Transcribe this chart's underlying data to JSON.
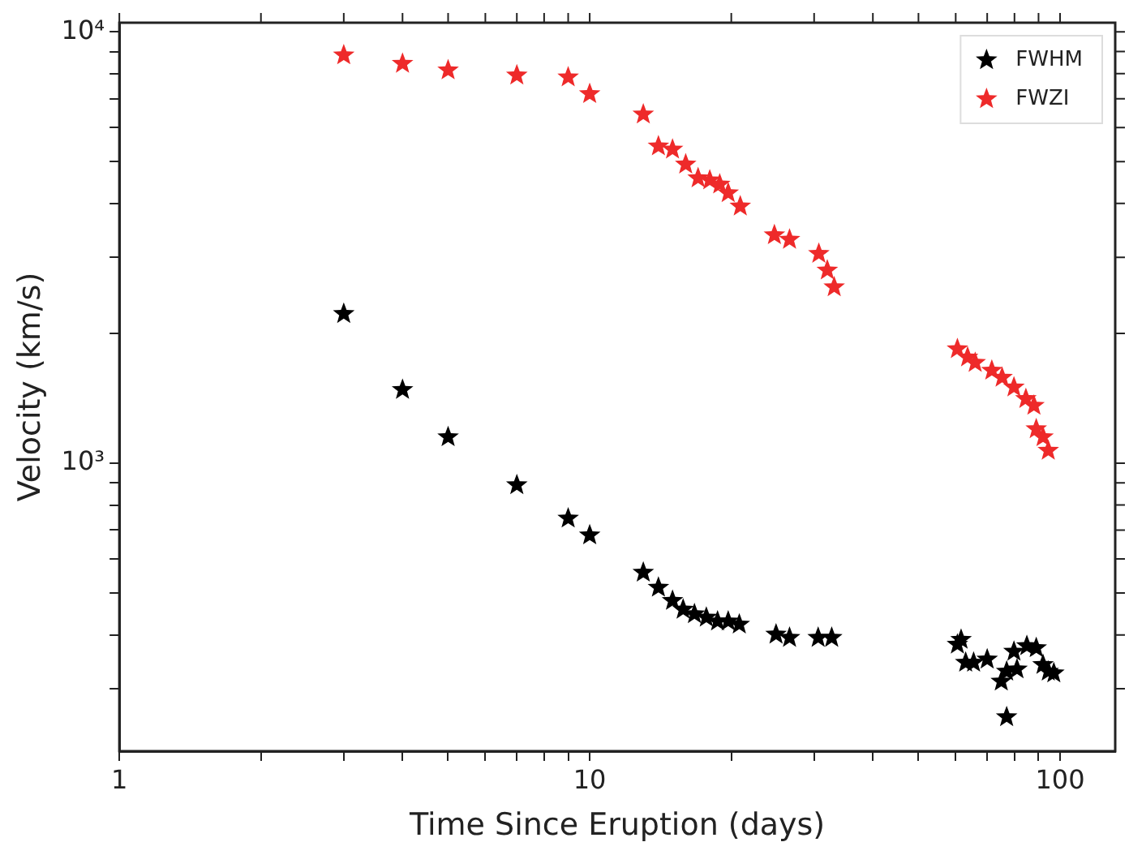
{
  "chart_data": {
    "type": "scatter",
    "xlabel": "Time Since Eruption (days)",
    "ylabel": "Velocity (km/s)",
    "log": "xy",
    "marker": "star",
    "legend": "top right",
    "grid": false,
    "xlim": [
      1,
      131
    ],
    "ylim": [
      215,
      10500
    ],
    "xticks": [
      1,
      {
        "value": 2,
        "label": null
      },
      {
        "value": 3,
        "label": null
      },
      {
        "value": 4,
        "label": null
      },
      {
        "value": 5,
        "label": null
      },
      {
        "value": 6,
        "label": null
      },
      {
        "value": 7,
        "label": null
      },
      {
        "value": 8,
        "label": null
      },
      {
        "value": 9,
        "label": null
      },
      10,
      {
        "value": 20,
        "label": null
      },
      {
        "value": 30,
        "label": null
      },
      {
        "value": 40,
        "label": null
      },
      {
        "value": 50,
        "label": null
      },
      {
        "value": 60,
        "label": null
      },
      {
        "value": 70,
        "label": null
      },
      {
        "value": 80,
        "label": null
      },
      {
        "value": 90,
        "label": null
      },
      100
    ],
    "yticks": [
      {
        "value": 300,
        "label": null
      },
      {
        "value": 400,
        "label": null
      },
      {
        "value": 500,
        "label": null
      },
      {
        "value": 600,
        "label": null
      },
      {
        "value": 700,
        "label": null
      },
      {
        "value": 800,
        "label": null
      },
      {
        "value": 900,
        "label": null
      },
      {
        "value": 1000,
        "label": "10³"
      },
      {
        "value": 2000,
        "label": null
      },
      {
        "value": 3000,
        "label": null
      },
      {
        "value": 4000,
        "label": null
      },
      {
        "value": 5000,
        "label": null
      },
      {
        "value": 6000,
        "label": null
      },
      {
        "value": 7000,
        "label": null
      },
      {
        "value": 8000,
        "label": null
      },
      {
        "value": 9000,
        "label": null
      },
      {
        "value": 10000,
        "label": "10⁴"
      }
    ],
    "series": [
      {
        "name": "FWHM",
        "color": "#000000",
        "x": [
          3,
          4,
          5,
          7,
          9,
          10,
          13,
          14,
          15,
          15.8,
          16.7,
          17.7,
          18.7,
          19.7,
          20.8,
          24.9,
          26.6,
          30.6,
          32.7,
          60.5,
          61.6,
          63,
          65.5,
          70,
          75,
          77,
          77,
          79.8,
          81,
          85,
          88,
          89,
          92,
          94.4,
          97
        ],
        "values": [
          2220,
          1480,
          1150,
          890,
          745,
          681,
          558,
          515,
          480,
          458,
          447,
          439,
          430,
          430,
          423,
          401,
          394,
          394,
          394,
          380,
          390,
          345,
          345,
          351,
          312,
          329,
          258,
          366,
          333,
          377,
          null,
          373,
          341,
          329,
          326
        ]
      },
      {
        "name": "FWZI",
        "color": "#ee2a2a",
        "x": [
          3,
          4,
          5,
          7,
          9,
          10,
          13,
          14,
          15,
          16,
          17,
          18,
          18.9,
          19.7,
          20.9,
          24.7,
          26.6,
          30.7,
          32,
          33.1,
          60.5,
          63.6,
          66,
          71.6,
          75.3,
          79.8,
          84.6,
          88,
          89,
          92,
          94.4
        ],
        "values": [
          8830,
          8440,
          8150,
          7930,
          7850,
          7180,
          6440,
          5430,
          5340,
          4930,
          4580,
          4530,
          4430,
          4230,
          3940,
          3380,
          3300,
          3060,
          2800,
          2560,
          1840,
          1760,
          1710,
          1640,
          1580,
          1500,
          1410,
          1360,
          1200,
          1150,
          1070
        ]
      }
    ]
  }
}
